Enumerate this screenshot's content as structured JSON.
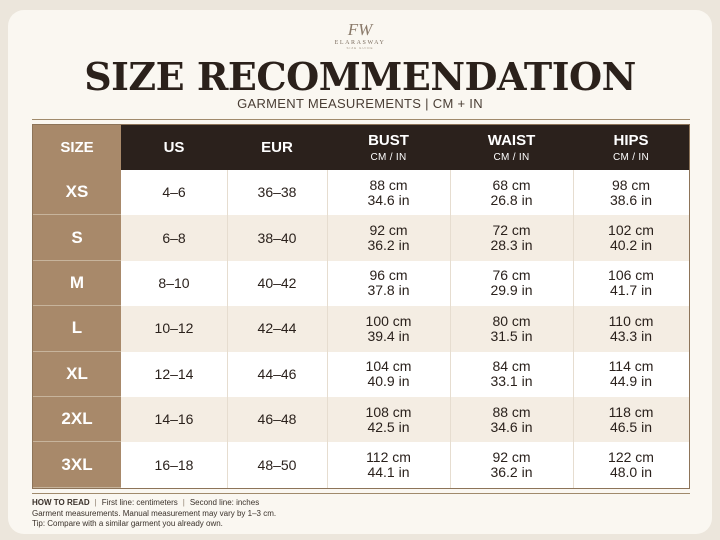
{
  "brand": {
    "mark": "FW",
    "name": "ELARASWAY",
    "tagline": "SIZE GUIDE"
  },
  "title": "SIZE RECOMMENDATION",
  "subtitle": "GARMENT MEASUREMENTS  |  CM + IN",
  "table": {
    "columns": [
      {
        "label": "SIZE"
      },
      {
        "label": "US"
      },
      {
        "label": "EUR"
      },
      {
        "label": "BUST",
        "unit": "CM / IN"
      },
      {
        "label": "WAIST",
        "unit": "CM / IN"
      },
      {
        "label": "HIPS",
        "unit": "CM / IN"
      }
    ],
    "rows": [
      {
        "size": "XS",
        "us": "4–6",
        "eur": "36–38",
        "bust_cm": "88 cm",
        "bust_in": "34.6 in",
        "waist_cm": "68 cm",
        "waist_in": "26.8 in",
        "hips_cm": "98 cm",
        "hips_in": "38.6 in"
      },
      {
        "size": "S",
        "us": "6–8",
        "eur": "38–40",
        "bust_cm": "92 cm",
        "bust_in": "36.2 in",
        "waist_cm": "72 cm",
        "waist_in": "28.3 in",
        "hips_cm": "102 cm",
        "hips_in": "40.2 in"
      },
      {
        "size": "M",
        "us": "8–10",
        "eur": "40–42",
        "bust_cm": "96 cm",
        "bust_in": "37.8 in",
        "waist_cm": "76 cm",
        "waist_in": "29.9 in",
        "hips_cm": "106 cm",
        "hips_in": "41.7 in"
      },
      {
        "size": "L",
        "us": "10–12",
        "eur": "42–44",
        "bust_cm": "100 cm",
        "bust_in": "39.4 in",
        "waist_cm": "80 cm",
        "waist_in": "31.5 in",
        "hips_cm": "110 cm",
        "hips_in": "43.3 in"
      },
      {
        "size": "XL",
        "us": "12–14",
        "eur": "44–46",
        "bust_cm": "104 cm",
        "bust_in": "40.9 in",
        "waist_cm": "84 cm",
        "waist_in": "33.1 in",
        "hips_cm": "114 cm",
        "hips_in": "44.9 in"
      },
      {
        "size": "2XL",
        "us": "14–16",
        "eur": "46–48",
        "bust_cm": "108 cm",
        "bust_in": "42.5 in",
        "waist_cm": "88 cm",
        "waist_in": "34.6 in",
        "hips_cm": "118 cm",
        "hips_in": "46.5 in"
      },
      {
        "size": "3XL",
        "us": "16–18",
        "eur": "48–50",
        "bust_cm": "112 cm",
        "bust_in": "44.1 in",
        "waist_cm": "92 cm",
        "waist_in": "36.2 in",
        "hips_cm": "122 cm",
        "hips_in": "48.0 in"
      }
    ]
  },
  "footer": {
    "how_label": "HOW TO READ",
    "line1_note": "First line: centimeters",
    "line2_note": "Second line: inches",
    "disclaimer": "Garment measurements. Manual measurement may vary by 1–3 cm.",
    "tip": "Tip: Compare with a similar garment you already own."
  },
  "colors": {
    "header_dark": "#2b211c",
    "size_column": "#a8896a",
    "alt_row": "#f4ede3",
    "accent_rule": "#a08a6c"
  }
}
